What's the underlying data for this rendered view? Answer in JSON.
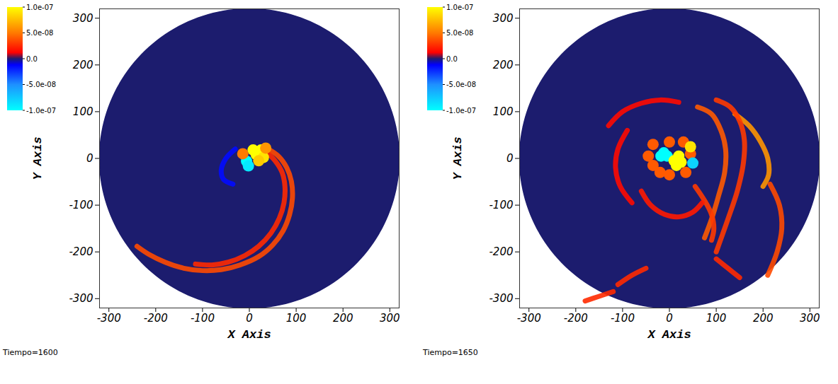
{
  "chart_data": [
    {
      "type": "heatmap",
      "caption": "Tiempo=1600",
      "x_label": "X Axis",
      "y_label": "Y Axis",
      "xlim": [
        -320,
        320
      ],
      "ylim": [
        -320,
        320
      ],
      "xticks": [
        -300,
        -200,
        -100,
        0,
        100,
        200,
        300
      ],
      "yticks": [
        -300,
        -200,
        -100,
        0,
        100,
        200,
        300
      ],
      "domain_radius": 320,
      "colorbar": {
        "range": [
          -1e-07,
          1e-07
        ],
        "ticks": [
          {
            "value": 1e-07,
            "label": "1.0e-07"
          },
          {
            "value": 5e-08,
            "label": "5.0e-08"
          },
          {
            "value": 0,
            "label": "0.0"
          },
          {
            "value": -5e-08,
            "label": "-5.0e-08"
          },
          {
            "value": -1e-07,
            "label": "-1.0e-07"
          }
        ]
      },
      "arms": [
        {
          "x": [
            40,
            62,
            80,
            90,
            92,
            86,
            72,
            50,
            20,
            -20,
            -60,
            -100,
            -140,
            -180,
            -215,
            -240
          ],
          "y": [
            20,
            5,
            -20,
            -50,
            -85,
            -120,
            -155,
            -185,
            -210,
            -228,
            -238,
            -240,
            -235,
            -222,
            -205,
            -188
          ],
          "value": 3.5e-08
        },
        {
          "x": [
            35,
            55,
            70,
            76,
            74,
            64,
            46,
            20,
            -10,
            -45,
            -80,
            -115
          ],
          "y": [
            15,
            -5,
            -30,
            -60,
            -95,
            -128,
            -160,
            -188,
            -208,
            -222,
            -228,
            -226
          ],
          "value": 2.5e-08
        },
        {
          "x": [
            -30,
            -50,
            -60,
            -55,
            -35
          ],
          "y": [
            20,
            0,
            -25,
            -45,
            -55
          ],
          "value": -1.5e-08
        }
      ],
      "blobs": {
        "x": [
          15,
          25,
          8,
          30,
          -6,
          -2,
          -14,
          35,
          20
        ],
        "y": [
          8,
          18,
          18,
          2,
          -6,
          -16,
          10,
          22,
          -5
        ],
        "values": [
          1e-07,
          1e-07,
          1e-07,
          9e-08,
          -1e-07,
          -9e-08,
          5e-08,
          6e-08,
          8e-08
        ]
      }
    },
    {
      "type": "heatmap",
      "caption": "Tiempo=1650",
      "x_label": "X Axis",
      "y_label": "Y Axis",
      "xlim": [
        -320,
        320
      ],
      "ylim": [
        -320,
        320
      ],
      "xticks": [
        -300,
        -200,
        -100,
        0,
        100,
        200,
        300
      ],
      "yticks": [
        -300,
        -200,
        -100,
        0,
        100,
        200,
        300
      ],
      "domain_radius": 320,
      "colorbar": {
        "range": [
          -1e-07,
          1e-07
        ],
        "ticks": [
          {
            "value": 1e-07,
            "label": "1.0e-07"
          },
          {
            "value": 5e-08,
            "label": "5.0e-08"
          },
          {
            "value": 0,
            "label": "0.0"
          },
          {
            "value": -5e-08,
            "label": "-5.0e-08"
          },
          {
            "value": -1e-07,
            "label": "-1.0e-07"
          }
        ]
      },
      "arms": [
        {
          "x": [
            140,
            170,
            195,
            210,
            212,
            200
          ],
          "y": [
            95,
            70,
            35,
            0,
            -35,
            -60
          ],
          "value": 6e-08
        },
        {
          "x": [
            60,
            90,
            110,
            120,
            118,
            105,
            90,
            75
          ],
          "y": [
            110,
            95,
            60,
            20,
            -30,
            -80,
            -130,
            -170
          ],
          "value": 4e-08
        },
        {
          "x": [
            100,
            130,
            150,
            160,
            158,
            145,
            125,
            100
          ],
          "y": [
            125,
            110,
            80,
            40,
            -10,
            -70,
            -130,
            -200
          ],
          "value": 3e-08
        },
        {
          "x": [
            215,
            235,
            240,
            230,
            210
          ],
          "y": [
            -55,
            -100,
            -150,
            -200,
            -250
          ],
          "value": 3.5e-08
        },
        {
          "x": [
            55,
            75,
            90,
            95,
            90
          ],
          "y": [
            -60,
            -90,
            -120,
            -150,
            -175
          ],
          "value": 3e-08
        },
        {
          "x": [
            -130,
            -100,
            -60,
            -20,
            20
          ],
          "y": [
            70,
            100,
            118,
            125,
            120
          ],
          "value": 1.5e-08
        },
        {
          "x": [
            -90,
            -110,
            -115,
            -105,
            -80
          ],
          "y": [
            60,
            20,
            -20,
            -60,
            -95
          ],
          "value": 1.5e-08
        },
        {
          "x": [
            -110,
            -80,
            -50
          ],
          "y": [
            -270,
            -250,
            -235
          ],
          "value": 2.5e-08
        },
        {
          "x": [
            -180,
            -150,
            -120
          ],
          "y": [
            -305,
            -295,
            -285
          ],
          "value": 2.5e-08
        },
        {
          "x": [
            100,
            125,
            150
          ],
          "y": [
            -215,
            -235,
            -255
          ],
          "value": 2.5e-08
        },
        {
          "x": [
            -60,
            -40,
            -10,
            20,
            50,
            70
          ],
          "y": [
            -70,
            -100,
            -120,
            -125,
            -115,
            -95
          ],
          "value": 2e-08
        }
      ],
      "blobs": {
        "x": [
          -35,
          -20,
          0,
          35,
          45,
          30,
          0,
          -35,
          -45,
          -12,
          -5,
          -18,
          10,
          20,
          15,
          25,
          50,
          45
        ],
        "y": [
          -15,
          -30,
          -35,
          -30,
          10,
          35,
          35,
          30,
          5,
          12,
          5,
          5,
          -5,
          5,
          -15,
          -8,
          -10,
          25
        ],
        "values": [
          4e-08,
          4e-08,
          4e-08,
          4e-08,
          4e-08,
          4e-08,
          4e-08,
          4e-08,
          4e-08,
          -1e-07,
          -1e-07,
          -1e-07,
          1e-07,
          1e-07,
          1e-07,
          1e-07,
          -8e-08,
          9e-08
        ]
      }
    }
  ]
}
